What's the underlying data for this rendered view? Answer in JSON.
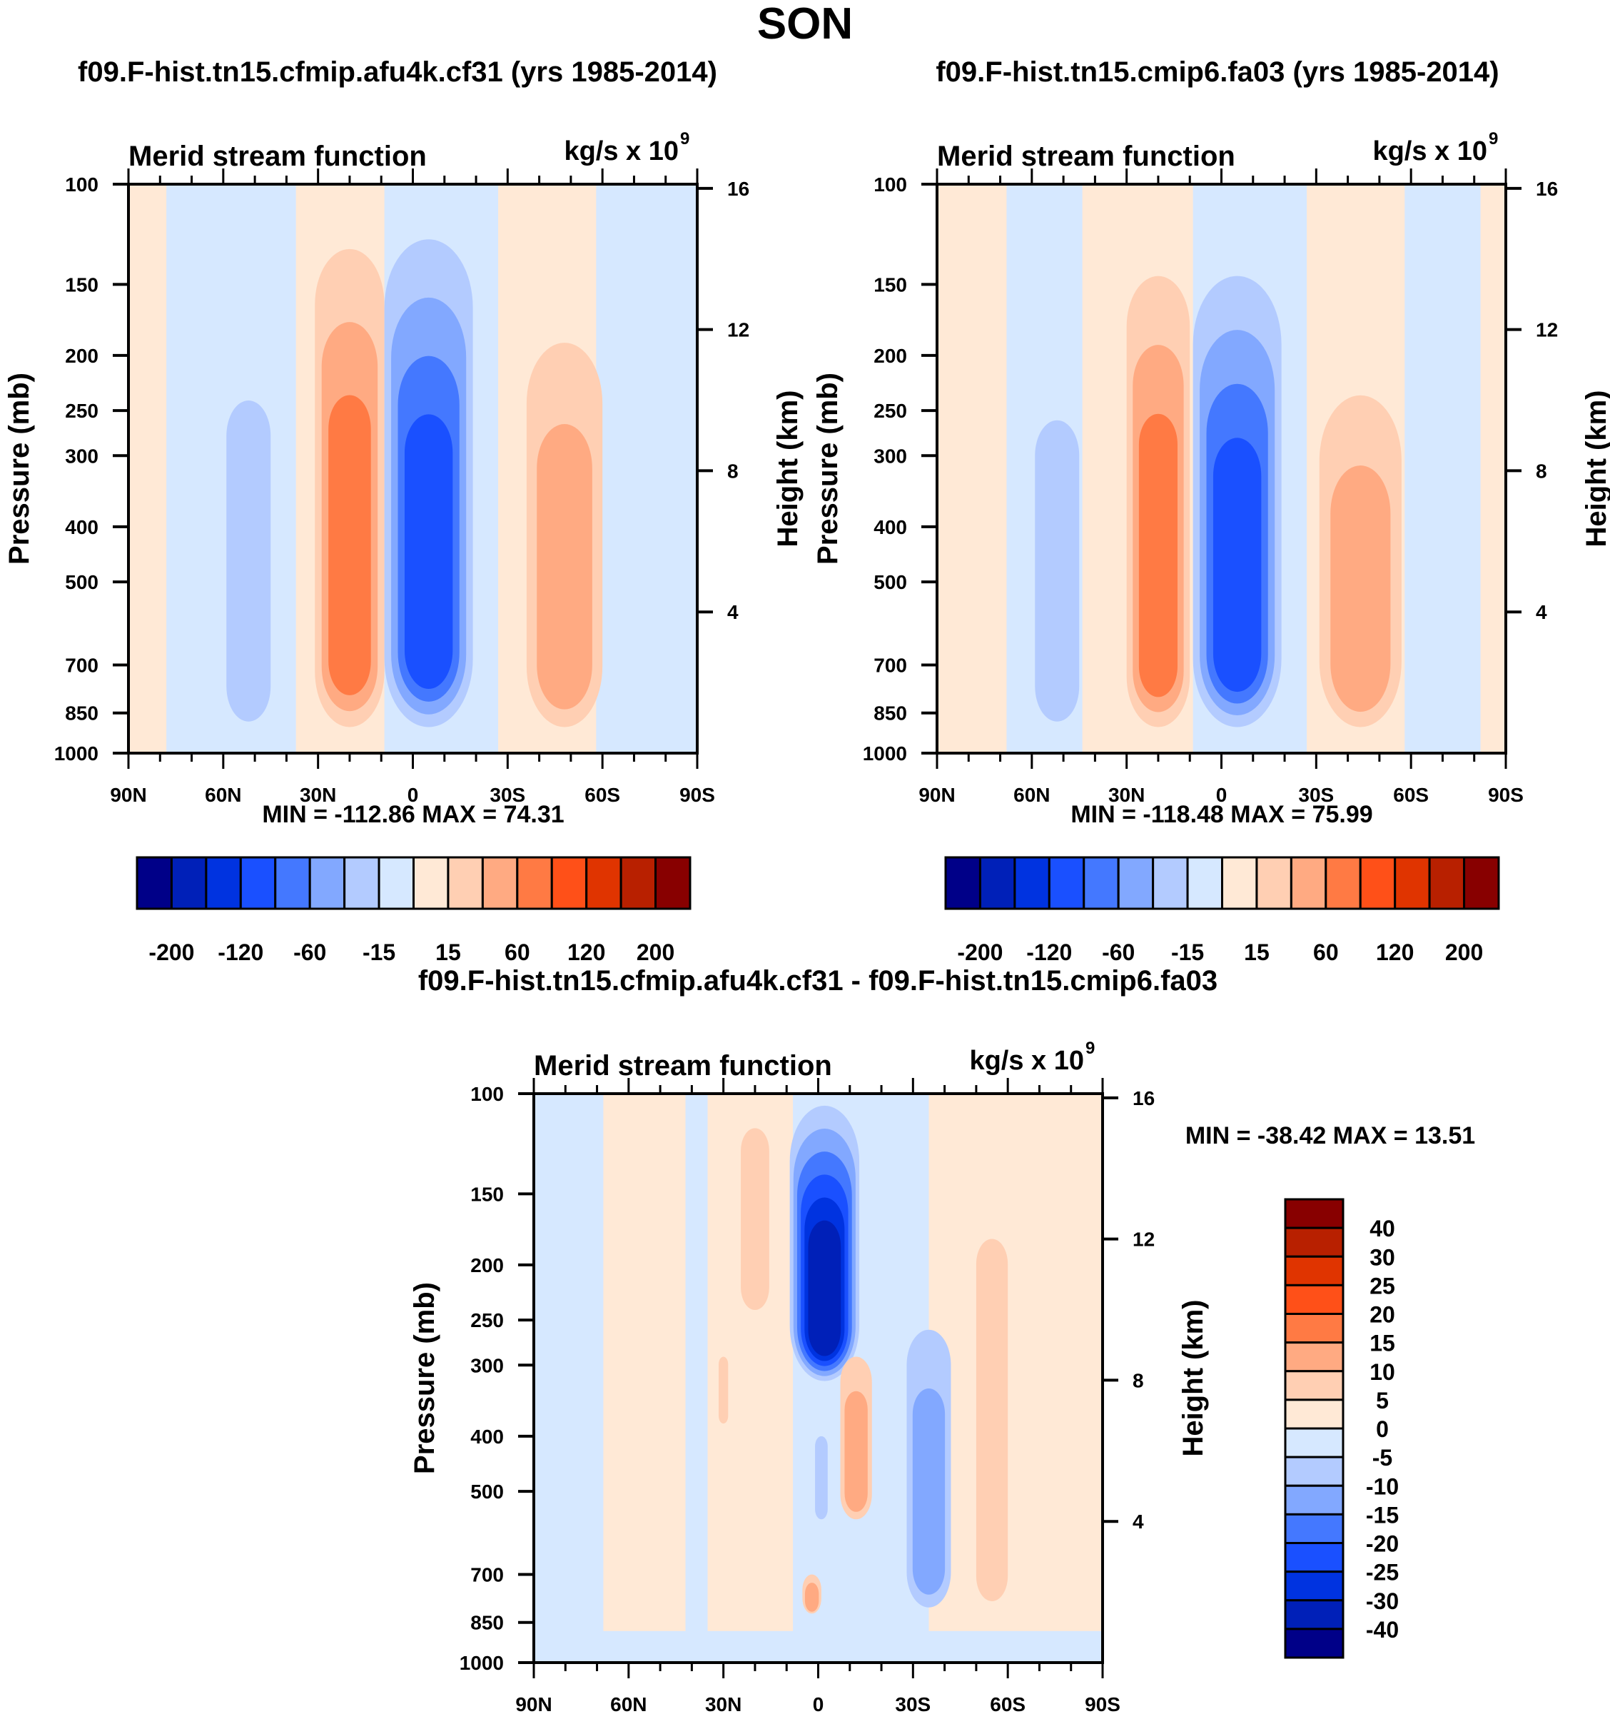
{
  "title": "SON",
  "colors": {
    "fill16": [
      "#000088",
      "#0020b8",
      "#0033e0",
      "#1a50ff",
      "#4478ff",
      "#82a8ff",
      "#b3cbff",
      "#d6e8ff",
      "#ffe9d6",
      "#ffcfb3",
      "#ffaa82",
      "#ff7a44",
      "#ff5018",
      "#e03400",
      "#b82000",
      "#880000"
    ]
  },
  "chart_data": [
    {
      "type": "heatmap",
      "panel": "top-left",
      "title": "f09.F-hist.tn15.cfmip.afu4k.cf31 (yrs 1985-2014)",
      "left_string": "Merid stream function",
      "right_string": "kg/s x 10",
      "right_string_sup": "9",
      "xlabel": "",
      "ylabel": "Pressure (mb)",
      "ylabel_right": "Height (km)",
      "x_ticks": [
        "90N",
        "60N",
        "30N",
        "0",
        "30S",
        "60S",
        "90S"
      ],
      "y_ticks": [
        "100",
        "150",
        "200",
        "250",
        "300",
        "400",
        "500",
        "700",
        "850",
        "1000"
      ],
      "y_ticks_right": [
        "16",
        "12",
        "8",
        "4"
      ],
      "xlim": [
        90,
        -90
      ],
      "ylim_mb": [
        1000,
        100
      ],
      "min_label": "MIN = -112.86",
      "max_label": "MAX =  74.31",
      "colorbar_labels": [
        "-200",
        "-120",
        "-60",
        "-15",
        "15",
        "60",
        "120",
        "200"
      ],
      "cells": [
        {
          "lat": 52,
          "p_top": 240,
          "p_bot": 880,
          "width_deg": 14,
          "levels": [
            -15
          ]
        },
        {
          "lat": 20,
          "p_top": 130,
          "p_bot": 900,
          "width_deg": 22,
          "levels": [
            15,
            40,
            60
          ]
        },
        {
          "lat": -5,
          "p_top": 125,
          "p_bot": 900,
          "width_deg": 28,
          "levels": [
            -15,
            -40,
            -60,
            -80
          ]
        },
        {
          "lat": -48,
          "p_top": 190,
          "p_bot": 900,
          "width_deg": 24,
          "levels": [
            15,
            40
          ]
        }
      ]
    },
    {
      "type": "heatmap",
      "panel": "top-right",
      "title": "f09.F-hist.tn15.cmip6.fa03 (yrs 1985-2014)",
      "left_string": "Merid stream function",
      "right_string": "kg/s x 10",
      "right_string_sup": "9",
      "xlabel": "",
      "ylabel": "Pressure (mb)",
      "ylabel_right": "Height (km)",
      "x_ticks": [
        "90N",
        "60N",
        "30N",
        "0",
        "30S",
        "60S",
        "90S"
      ],
      "y_ticks": [
        "100",
        "150",
        "200",
        "250",
        "300",
        "400",
        "500",
        "700",
        "850",
        "1000"
      ],
      "y_ticks_right": [
        "16",
        "12",
        "8",
        "4"
      ],
      "xlim": [
        90,
        -90
      ],
      "ylim_mb": [
        1000,
        100
      ],
      "min_label": "MIN = -118.48",
      "max_label": "MAX =  75.99",
      "colorbar_labels": [
        "-200",
        "-120",
        "-60",
        "-15",
        "15",
        "60",
        "120",
        "200"
      ],
      "cells": [
        {
          "lat": 52,
          "p_top": 260,
          "p_bot": 880,
          "width_deg": 14,
          "levels": [
            -15
          ]
        },
        {
          "lat": 20,
          "p_top": 145,
          "p_bot": 900,
          "width_deg": 20,
          "levels": [
            15,
            40,
            60
          ]
        },
        {
          "lat": -5,
          "p_top": 145,
          "p_bot": 900,
          "width_deg": 28,
          "levels": [
            -15,
            -40,
            -60,
            -80
          ]
        },
        {
          "lat": -44,
          "p_top": 235,
          "p_bot": 900,
          "width_deg": 26,
          "levels": [
            15,
            40
          ]
        }
      ]
    },
    {
      "type": "heatmap",
      "panel": "bottom",
      "title": "f09.F-hist.tn15.cfmip.afu4k.cf31 - f09.F-hist.tn15.cmip6.fa03",
      "left_string": "Merid stream function",
      "right_string": "kg/s x 10",
      "right_string_sup": "9",
      "xlabel": "",
      "ylabel": "Pressure (mb)",
      "ylabel_right": "Height (km)",
      "x_ticks": [
        "90N",
        "60N",
        "30N",
        "0",
        "30S",
        "60S",
        "90S"
      ],
      "y_ticks": [
        "100",
        "150",
        "200",
        "250",
        "300",
        "400",
        "500",
        "700",
        "850",
        "1000"
      ],
      "y_ticks_right": [
        "16",
        "12",
        "8",
        "4"
      ],
      "xlim": [
        90,
        -90
      ],
      "ylim_mb": [
        1000,
        100
      ],
      "min_label": "MIN = -38.42",
      "max_label": "MAX =  13.51",
      "colorbar_labels": [
        "40",
        "30",
        "25",
        "20",
        "15",
        "10",
        "5",
        "0",
        "-5",
        "-10",
        "-15",
        "-20",
        "-25",
        "-30",
        "-40"
      ],
      "cells": [
        {
          "lat": 20,
          "p_top": 115,
          "p_bot": 240,
          "width_deg": 9,
          "levels": [
            5
          ]
        },
        {
          "lat": -2,
          "p_top": 105,
          "p_bot": 320,
          "width_deg": 22,
          "levels": [
            -5,
            -10,
            -15,
            -20,
            -25,
            -30
          ]
        },
        {
          "lat": -12,
          "p_top": 290,
          "p_bot": 560,
          "width_deg": 10,
          "levels": [
            5,
            10
          ]
        },
        {
          "lat": -35,
          "p_top": 260,
          "p_bot": 800,
          "width_deg": 14,
          "levels": [
            -5,
            -10
          ]
        },
        {
          "lat": -55,
          "p_top": 180,
          "p_bot": 780,
          "width_deg": 10,
          "levels": [
            5
          ]
        },
        {
          "lat": -1,
          "p_top": 400,
          "p_bot": 560,
          "width_deg": 4,
          "levels": [
            -5
          ]
        },
        {
          "lat": 2,
          "p_top": 700,
          "p_bot": 820,
          "width_deg": 6,
          "levels": [
            5,
            10
          ]
        },
        {
          "lat": 30,
          "p_top": 290,
          "p_bot": 380,
          "width_deg": 3,
          "levels": [
            5
          ]
        }
      ]
    }
  ]
}
